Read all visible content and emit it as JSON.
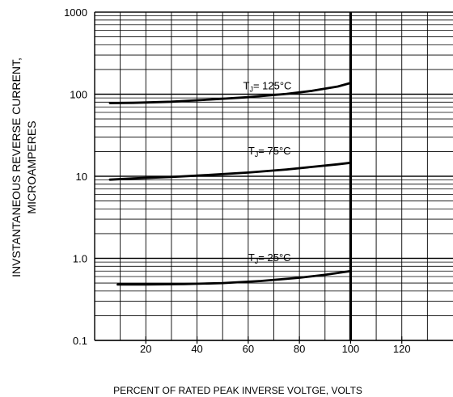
{
  "chart_data": {
    "type": "line",
    "title": "",
    "xlabel": "PERCENT OF RATED PEAK INVERSE VOLTGE, VOLTS",
    "ylabel_lines": [
      "INVSTANTANEOUS REVERSE CURRENT,",
      "MICROAMPERES"
    ],
    "x_scale": "linear",
    "y_scale": "log",
    "xlim": [
      0,
      140
    ],
    "ylim": [
      0.1,
      1000
    ],
    "x_ticks": [
      20,
      40,
      60,
      80,
      100,
      120
    ],
    "x_tick_labels": [
      "20",
      "40",
      "60",
      "80",
      "100",
      "120"
    ],
    "y_ticks": [
      0.1,
      1,
      10,
      100,
      1000
    ],
    "y_tick_labels": [
      "0.1",
      "1.0",
      "10",
      "100",
      "1000"
    ],
    "grid": true,
    "vertical_limit_x": 100,
    "series": [
      {
        "name": "TJ= 125°C",
        "label_main": "T",
        "label_sub": "J",
        "label_rest": "= 125°C",
        "label_at": [
          58,
          115
        ],
        "x": [
          6,
          15,
          30,
          45,
          60,
          75,
          85,
          95,
          100
        ],
        "y": [
          78,
          78.5,
          81,
          86,
          92,
          101,
          110,
          124,
          137
        ]
      },
      {
        "name": "TJ= 75°C",
        "label_main": "T",
        "label_sub": "J",
        "label_rest": "= 75°C",
        "label_at": [
          60,
          18.5
        ],
        "x": [
          6,
          15,
          30,
          45,
          60,
          75,
          85,
          95,
          100
        ],
        "y": [
          9.1,
          9.4,
          9.8,
          10.4,
          11.1,
          12.1,
          13.0,
          14.0,
          14.6
        ]
      },
      {
        "name": "TJ= 25°C",
        "label_main": "T",
        "label_sub": "J",
        "label_rest": "= 25°C",
        "label_at": [
          60,
          0.92
        ],
        "x": [
          9,
          20,
          35,
          50,
          65,
          80,
          90,
          100
        ],
        "y": [
          0.48,
          0.48,
          0.485,
          0.5,
          0.53,
          0.58,
          0.63,
          0.7
        ]
      }
    ]
  }
}
